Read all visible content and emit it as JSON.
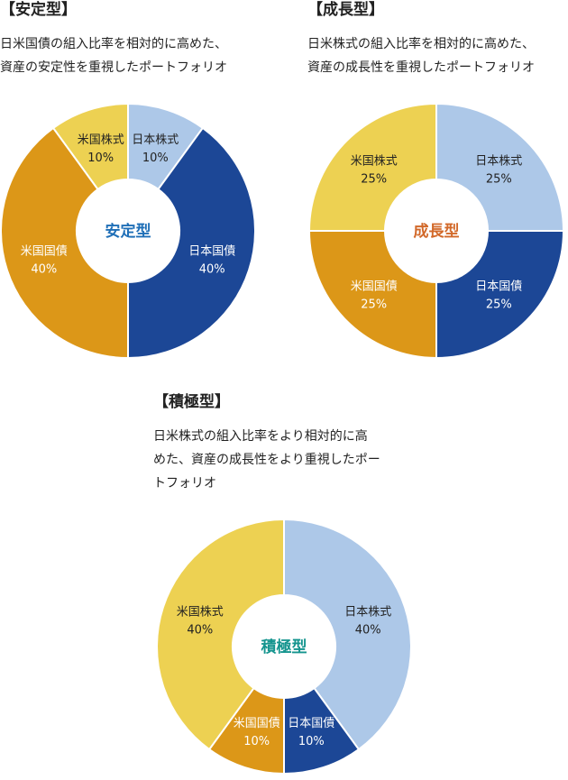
{
  "colors": {
    "japan_equity": "#adc8e8",
    "japan_bond": "#1c4796",
    "us_bond": "#dc9718",
    "us_equity": "#edd152"
  },
  "chart_data": [
    {
      "type": "pie",
      "donut": true,
      "title": "【安定型】",
      "description_lines": [
        "日米国債の組入比率を相対的に高めた、",
        "資産の安定性を重視したポートフォリオ"
      ],
      "center_label": "安定型",
      "center_color": "#1f6fb7",
      "slices": [
        {
          "label": "日本株式",
          "value": 10,
          "value_label": "10%",
          "color": "#adc8e8",
          "text_color": "#222222"
        },
        {
          "label": "日本国債",
          "value": 40,
          "value_label": "40%",
          "color": "#1c4796",
          "text_color": "#ffffff"
        },
        {
          "label": "米国国債",
          "value": 40,
          "value_label": "40%",
          "color": "#dc9718",
          "text_color": "#ffffff"
        },
        {
          "label": "米国株式",
          "value": 10,
          "value_label": "10%",
          "color": "#edd152",
          "text_color": "#222222"
        }
      ]
    },
    {
      "type": "pie",
      "donut": true,
      "title": "【成長型】",
      "description_lines": [
        "日米株式の組入比率を相対的に高めた、",
        "資産の成長性を重視したポートフォリオ"
      ],
      "center_label": "成長型",
      "center_color": "#d2692a",
      "slices": [
        {
          "label": "日本株式",
          "value": 25,
          "value_label": "25%",
          "color": "#adc8e8",
          "text_color": "#222222"
        },
        {
          "label": "日本国債",
          "value": 25,
          "value_label": "25%",
          "color": "#1c4796",
          "text_color": "#ffffff"
        },
        {
          "label": "米国国債",
          "value": 25,
          "value_label": "25%",
          "color": "#dc9718",
          "text_color": "#ffffff"
        },
        {
          "label": "米国株式",
          "value": 25,
          "value_label": "25%",
          "color": "#edd152",
          "text_color": "#222222"
        }
      ]
    },
    {
      "type": "pie",
      "donut": true,
      "title": "【積極型】",
      "description_lines": [
        "日米株式の組入比率をより相対的に高",
        "めた、資産の成長性をより重視したポー",
        "トフォリオ"
      ],
      "center_label": "積極型",
      "center_color": "#14948e",
      "slices": [
        {
          "label": "日本株式",
          "value": 40,
          "value_label": "40%",
          "color": "#adc8e8",
          "text_color": "#222222"
        },
        {
          "label": "日本国債",
          "value": 10,
          "value_label": "10%",
          "color": "#1c4796",
          "text_color": "#ffffff"
        },
        {
          "label": "米国国債",
          "value": 10,
          "value_label": "10%",
          "color": "#dc9718",
          "text_color": "#ffffff"
        },
        {
          "label": "米国株式",
          "value": 40,
          "value_label": "40%",
          "color": "#edd152",
          "text_color": "#222222"
        }
      ]
    }
  ]
}
